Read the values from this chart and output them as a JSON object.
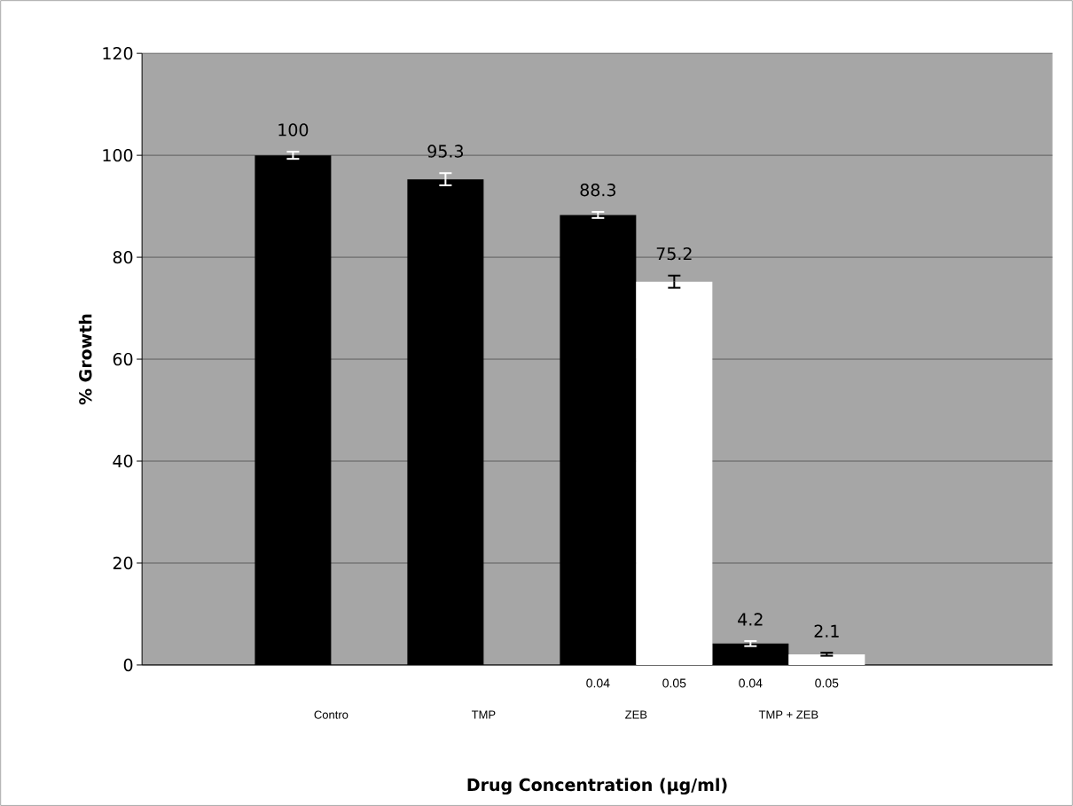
{
  "chart_data": {
    "type": "bar",
    "xlabel": "Drug Concentration (µg/ml)",
    "ylabel": "% Growth",
    "categories": [
      "Contro",
      "TMP",
      "ZEB",
      "TMP + ZEB"
    ],
    "series": [
      {
        "color": "#000000",
        "values": [
          100,
          95.3,
          88.3,
          4.2
        ],
        "errors": [
          0.7,
          1.2,
          0.6,
          0.5
        ]
      },
      {
        "color": "#ffffff",
        "values": [
          null,
          null,
          75.2,
          2.1
        ],
        "errors": [
          null,
          null,
          1.2,
          0.3
        ]
      }
    ],
    "ylim": [
      0,
      120
    ],
    "yticks": [
      0,
      20,
      40,
      60,
      80,
      100,
      120
    ],
    "grid": "y",
    "data_labels": true,
    "annotations": [
      "0.04",
      "0.05",
      "0.04",
      "0.05"
    ]
  }
}
